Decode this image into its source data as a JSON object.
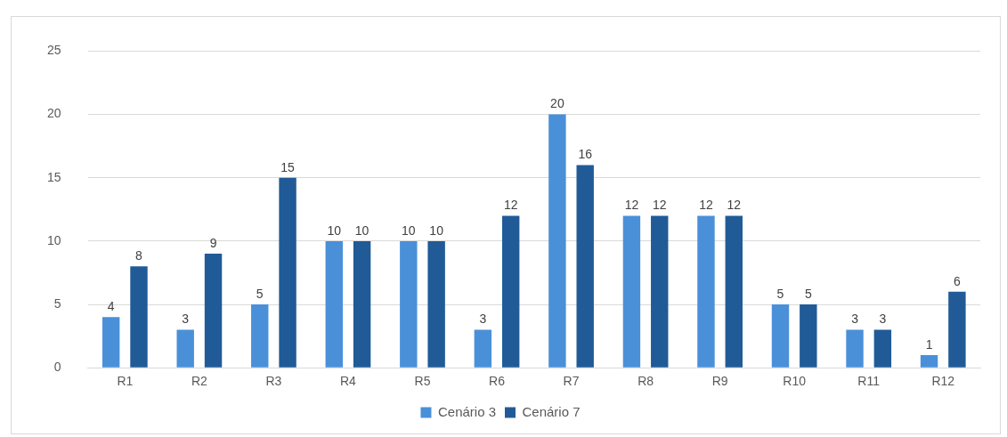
{
  "chart_data": {
    "type": "bar",
    "categories": [
      "R1",
      "R2",
      "R3",
      "R4",
      "R5",
      "R6",
      "R7",
      "R8",
      "R9",
      "R10",
      "R11",
      "R12"
    ],
    "series": [
      {
        "name": "Cenário 3",
        "color": "#4a90d9",
        "values": [
          4,
          3,
          5,
          10,
          10,
          3,
          20,
          12,
          12,
          5,
          3,
          1
        ]
      },
      {
        "name": "Cenário 7",
        "color": "#215b97",
        "values": [
          8,
          9,
          15,
          10,
          10,
          12,
          16,
          12,
          12,
          5,
          3,
          6
        ]
      }
    ],
    "ylim": [
      0,
      25
    ],
    "yticks": [
      0,
      5,
      10,
      15,
      20,
      25
    ],
    "grid": "y",
    "legend": "bottom",
    "data_labels": true
  }
}
